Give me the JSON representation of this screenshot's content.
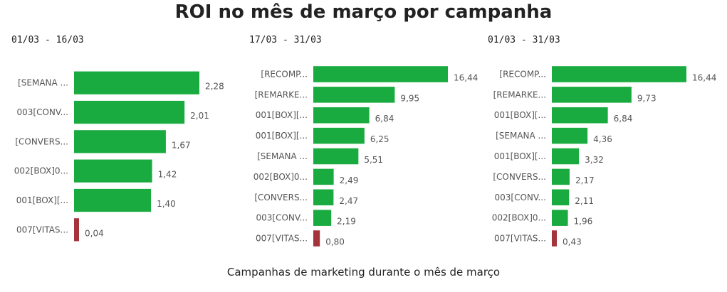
{
  "title": "ROI no mês de março por campanha",
  "footer": "Campanhas de marketing durante o mês de março",
  "colors": {
    "positive": "#1aab40",
    "negative": "#a4343a"
  },
  "chart_data": [
    {
      "type": "bar",
      "orientation": "horizontal",
      "title": "01/03 - 16/03",
      "categories": [
        "[SEMANA ...",
        "003[CONV...",
        "[CONVERS...",
        "002[BOX]0...",
        "001[BOX][...",
        "007[VITAS..."
      ],
      "values": [
        2.28,
        2.01,
        1.67,
        1.42,
        1.4,
        0.04
      ],
      "value_labels": [
        "2,28",
        "2,01",
        "1,67",
        "1,42",
        "1,40",
        "0,04"
      ],
      "xlim": [
        0,
        2.28
      ]
    },
    {
      "type": "bar",
      "orientation": "horizontal",
      "title": "17/03 - 31/03",
      "categories": [
        "[RECOMP...",
        "[REMARKE...",
        "001[BOX][...",
        "001[BOX][...",
        "[SEMANA ...",
        "002[BOX]0...",
        "[CONVERS...",
        "003[CONV...",
        "007[VITAS..."
      ],
      "values": [
        16.44,
        9.95,
        6.84,
        6.25,
        5.51,
        2.49,
        2.47,
        2.19,
        0.8
      ],
      "value_labels": [
        "16,44",
        "9,95",
        "6,84",
        "6,25",
        "5,51",
        "2,49",
        "2,47",
        "2,19",
        "0,80"
      ],
      "xlim": [
        0,
        16.44
      ]
    },
    {
      "type": "bar",
      "orientation": "horizontal",
      "title": "01/03 - 31/03",
      "categories": [
        "[RECOMP...",
        "[REMARKE...",
        "001[BOX][...",
        "[SEMANA ...",
        "001[BOX][...",
        "[CONVERS...",
        "003[CONV...",
        "002[BOX]0...",
        "007[VITAS..."
      ],
      "values": [
        16.44,
        9.73,
        6.84,
        4.36,
        3.32,
        2.17,
        2.11,
        1.96,
        0.43
      ],
      "value_labels": [
        "16,44",
        "9,73",
        "6,84",
        "4,36",
        "3,32",
        "2,17",
        "2,11",
        "1,96",
        "0,43"
      ],
      "xlim": [
        0,
        16.44
      ]
    }
  ]
}
